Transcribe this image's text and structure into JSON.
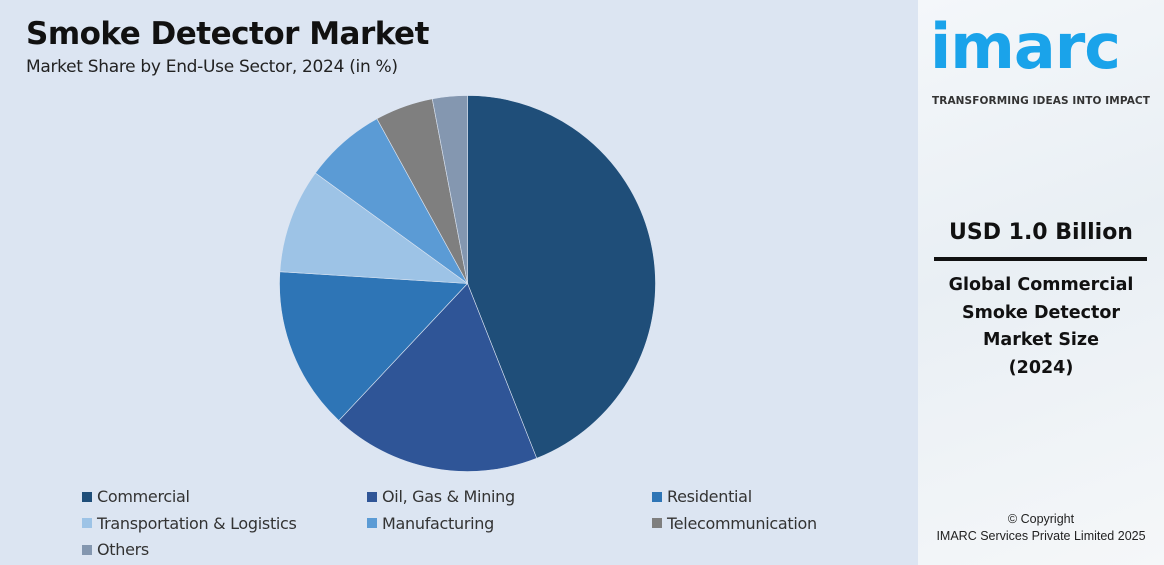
{
  "chart_data": {
    "type": "pie",
    "title": "Smoke Detector Market",
    "subtitle": "Market Share by End-Use Sector, 2024 (in %)",
    "categories": [
      "Commercial",
      "Oil, Gas & Mining",
      "Residential",
      "Transportation & Logistics",
      "Manufacturing",
      "Telecommunication",
      "Others"
    ],
    "values": [
      44,
      18,
      14,
      9,
      7,
      5,
      3
    ],
    "colors": [
      "#1f4e79",
      "#2f5597",
      "#2e75b6",
      "#9dc3e6",
      "#5b9bd5",
      "#7f7f7f",
      "#8497b0"
    ],
    "start_angle": "12 o'clock",
    "direction": "clockwise",
    "legend_position": "bottom"
  },
  "side_panel": {
    "logo": "imarc",
    "tagline": "TRANSFORMING IDEAS INTO IMPACT",
    "market_size": "USD 1.0 Billion",
    "description_lines": [
      "Global Commercial",
      "Smoke Detector",
      "Market Size",
      "(2024)"
    ],
    "copyright_line1": "© Copyright",
    "copyright_line2": "IMARC Services Private Limited 2025"
  }
}
